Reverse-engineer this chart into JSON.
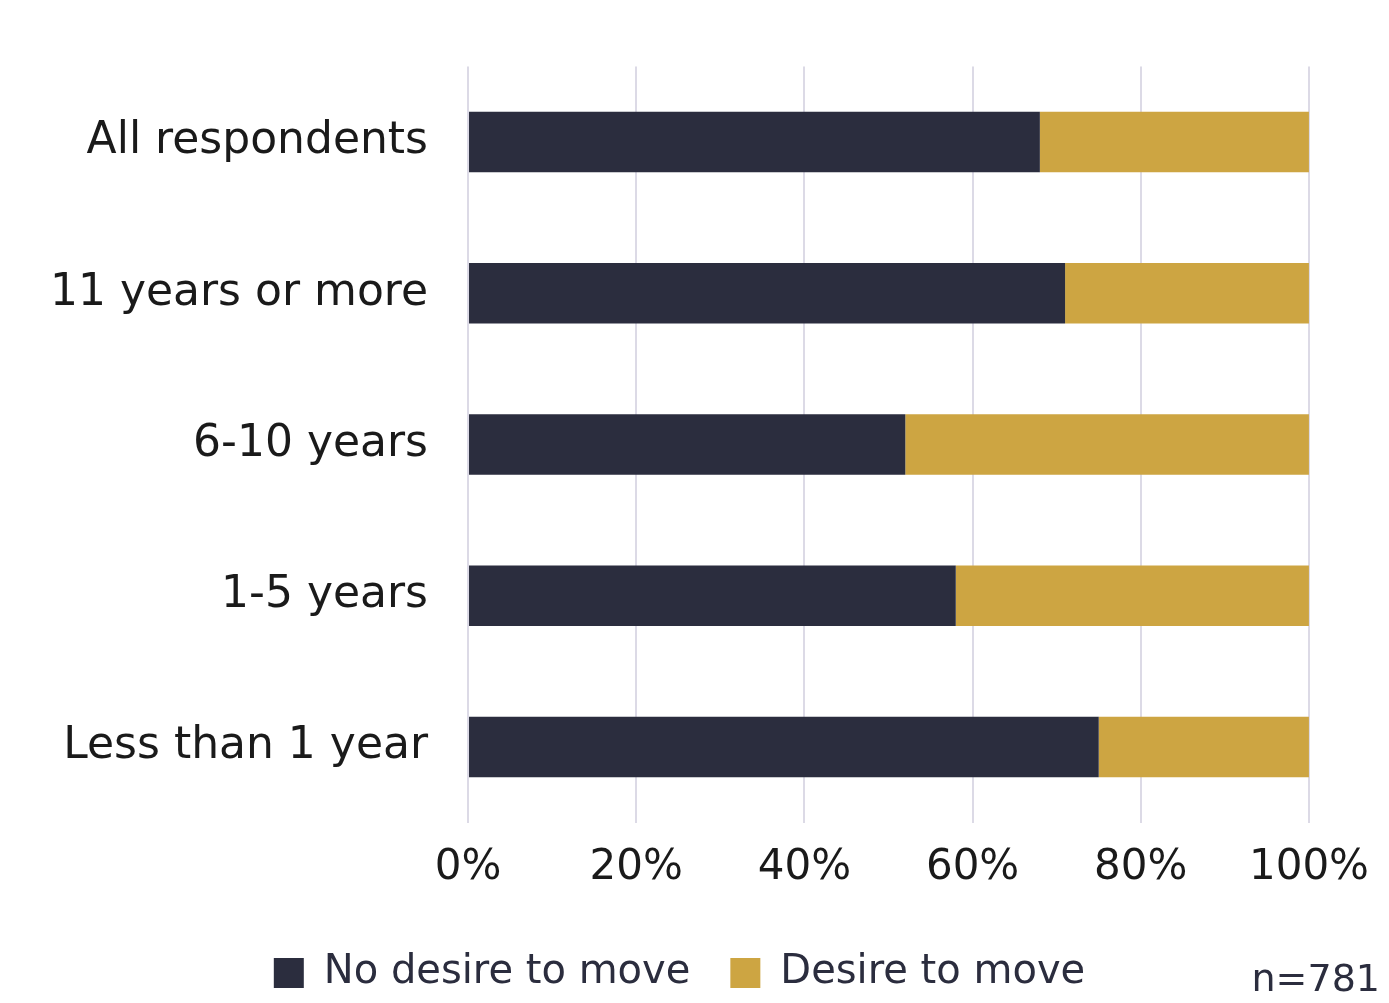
{
  "chart_data": {
    "type": "bar",
    "orientation": "horizontal",
    "stacked": true,
    "categories": [
      "All respondents",
      "11 years or more",
      "6-10 years",
      "1-5 years",
      "Less than 1 year"
    ],
    "series": [
      {
        "name": "No desire to move",
        "color": "#2b2d3e",
        "values": [
          68,
          71,
          52,
          58,
          75
        ]
      },
      {
        "name": "Desire to move",
        "color": "#cda542",
        "values": [
          32,
          29,
          48,
          42,
          25
        ]
      }
    ],
    "xlim": [
      0,
      100
    ],
    "xticks": [
      {
        "value": 0,
        "label": "0%"
      },
      {
        "value": 20,
        "label": "20%"
      },
      {
        "value": 40,
        "label": "40%"
      },
      {
        "value": 60,
        "label": "60%"
      },
      {
        "value": 80,
        "label": "80%"
      },
      {
        "value": 100,
        "label": "100%"
      }
    ],
    "grid": "x",
    "legend": "bottom",
    "annotations": [
      "n=781"
    ]
  }
}
